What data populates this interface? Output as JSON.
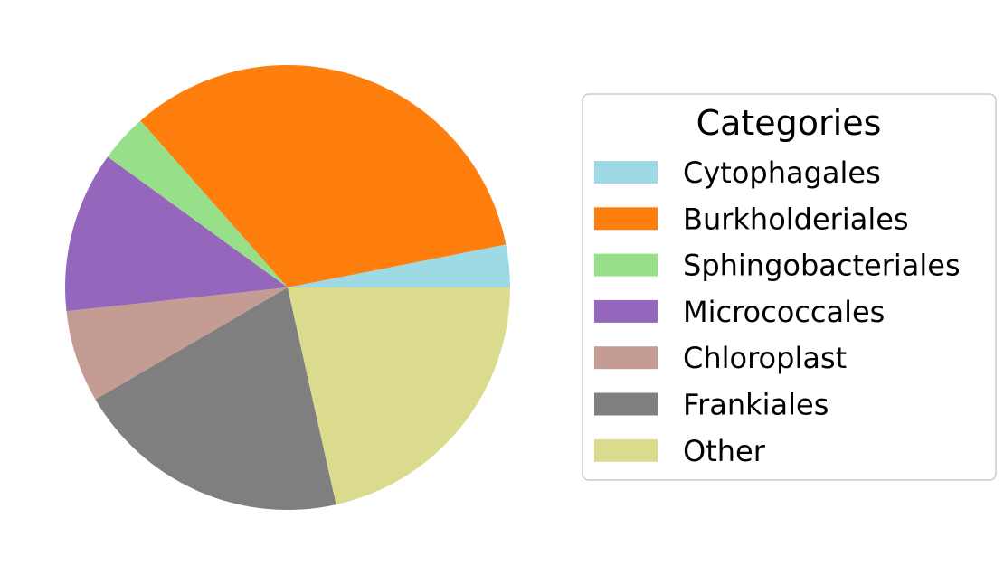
{
  "chart_data": {
    "type": "pie",
    "title": "",
    "legend": {
      "title": "Categories",
      "placement": "right"
    },
    "slices": [
      {
        "label": "Cytophagales",
        "value": 3.1,
        "color": "#9edae5"
      },
      {
        "label": "Burkholderiales",
        "value": 33.4,
        "color": "#ff7f0e"
      },
      {
        "label": "Sphingobacteriales",
        "value": 3.5,
        "color": "#98df8a"
      },
      {
        "label": "Micrococcales",
        "value": 11.7,
        "color": "#9467bd"
      },
      {
        "label": "Chloroplast",
        "value": 6.7,
        "color": "#c49c94"
      },
      {
        "label": "Frankiales",
        "value": 20.1,
        "color": "#7f7f7f"
      },
      {
        "label": "Other",
        "value": 21.5,
        "color": "#dbdb8d"
      }
    ]
  }
}
